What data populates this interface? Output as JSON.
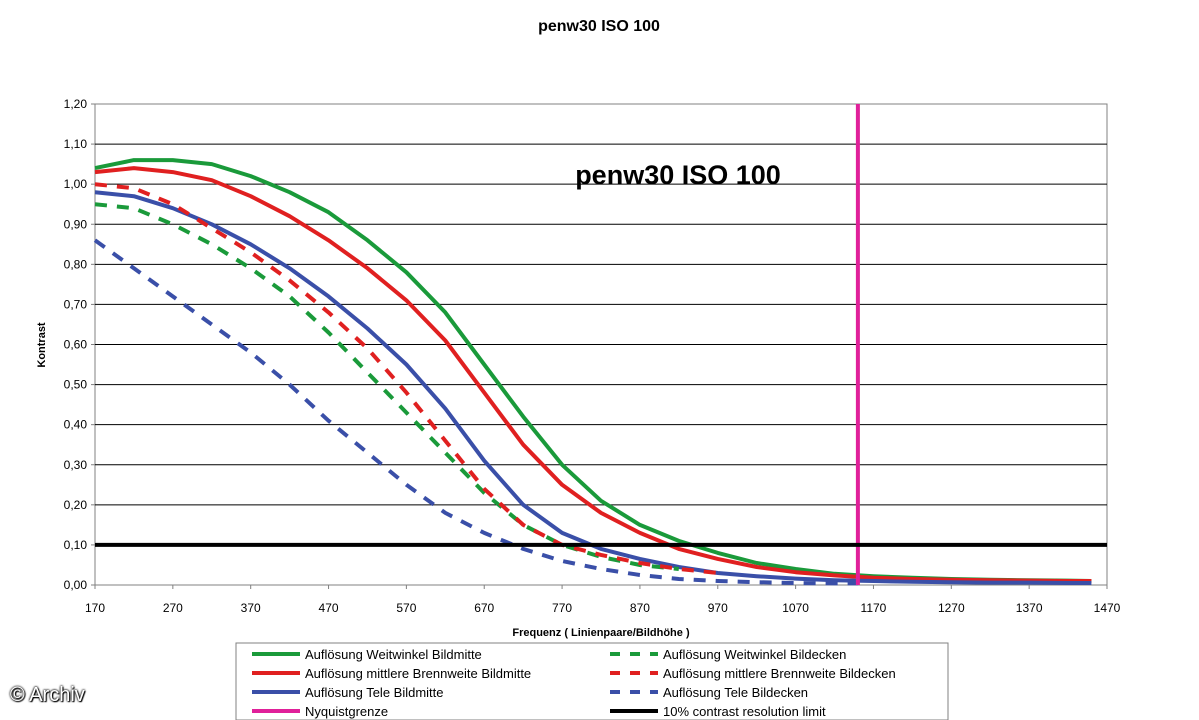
{
  "chart_data": {
    "type": "line",
    "title": "penw30 ISO 100",
    "annotation": "penw30 ISO 100",
    "xlabel": "Frequenz ( Linienpaare/Bildhöhe )",
    "ylabel": "Kontrast",
    "xlim": [
      170,
      1470
    ],
    "ylim": [
      0,
      1.2
    ],
    "x_ticks": [
      "170",
      "270",
      "370",
      "470",
      "570",
      "670",
      "770",
      "870",
      "970",
      "1070",
      "1170",
      "1270",
      "1370",
      "1470"
    ],
    "y_ticks": [
      "0,00",
      "0,10",
      "0,20",
      "0,30",
      "0,40",
      "0,50",
      "0,60",
      "0,70",
      "0,80",
      "0,90",
      "1,00",
      "1,10",
      "1,20"
    ],
    "grid": "horizontal",
    "legend_position": "bottom",
    "series": [
      {
        "name": "Auflösung Weitwinkel Bildmitte",
        "color": "#1a9a3a",
        "style": "solid",
        "x": [
          170,
          220,
          270,
          320,
          370,
          420,
          470,
          520,
          570,
          620,
          670,
          720,
          770,
          820,
          870,
          920,
          970,
          1020,
          1070,
          1120,
          1170,
          1220,
          1270,
          1320,
          1370,
          1420,
          1450
        ],
        "y": [
          1.04,
          1.06,
          1.06,
          1.05,
          1.02,
          0.98,
          0.93,
          0.86,
          0.78,
          0.68,
          0.55,
          0.42,
          0.3,
          0.21,
          0.15,
          0.11,
          0.08,
          0.055,
          0.04,
          0.028,
          0.022,
          0.018,
          0.015,
          0.013,
          0.012,
          0.011,
          0.01
        ]
      },
      {
        "name": "Auflösung mittlere Brennweite Bildmitte",
        "color": "#e02020",
        "style": "solid",
        "x": [
          170,
          220,
          270,
          320,
          370,
          420,
          470,
          520,
          570,
          620,
          670,
          720,
          770,
          820,
          870,
          920,
          970,
          1020,
          1070,
          1120,
          1170,
          1220,
          1270,
          1320,
          1370,
          1420,
          1450
        ],
        "y": [
          1.03,
          1.04,
          1.03,
          1.01,
          0.97,
          0.92,
          0.86,
          0.79,
          0.71,
          0.61,
          0.48,
          0.35,
          0.25,
          0.18,
          0.13,
          0.09,
          0.065,
          0.045,
          0.032,
          0.024,
          0.018,
          0.015,
          0.013,
          0.012,
          0.011,
          0.01,
          0.01
        ]
      },
      {
        "name": "Auflösung Tele Bildmitte",
        "color": "#3a4fa8",
        "style": "solid",
        "x": [
          170,
          220,
          270,
          320,
          370,
          420,
          470,
          520,
          570,
          620,
          670,
          720,
          770,
          820,
          870,
          920,
          970,
          1020,
          1070,
          1120,
          1170,
          1220,
          1270,
          1320,
          1370,
          1420,
          1450
        ],
        "y": [
          0.98,
          0.97,
          0.94,
          0.9,
          0.85,
          0.79,
          0.72,
          0.64,
          0.55,
          0.44,
          0.31,
          0.2,
          0.13,
          0.09,
          0.065,
          0.045,
          0.03,
          0.022,
          0.016,
          0.012,
          0.01,
          0.008,
          0.007,
          0.006,
          0.006,
          0.005,
          0.005
        ]
      },
      {
        "name": "Auflösung Weitwinkel Bildecken",
        "color": "#1a9a3a",
        "style": "dashed",
        "x": [
          170,
          220,
          270,
          320,
          370,
          420,
          470,
          520,
          570,
          620,
          670,
          720,
          770,
          820,
          870,
          920
        ],
        "y": [
          0.95,
          0.94,
          0.9,
          0.85,
          0.79,
          0.72,
          0.63,
          0.53,
          0.43,
          0.33,
          0.23,
          0.15,
          0.1,
          0.07,
          0.05,
          0.04
        ]
      },
      {
        "name": "Auflösung mittlere Brennweite Bildecken",
        "color": "#e02020",
        "style": "dashed",
        "x": [
          170,
          220,
          270,
          320,
          370,
          420,
          470,
          520,
          570,
          620,
          670,
          720,
          770,
          820,
          870,
          920,
          970
        ],
        "y": [
          1.0,
          0.99,
          0.95,
          0.89,
          0.83,
          0.76,
          0.68,
          0.59,
          0.48,
          0.36,
          0.24,
          0.15,
          0.1,
          0.075,
          0.055,
          0.04,
          0.03
        ]
      },
      {
        "name": "Auflösung Tele Bildecken",
        "color": "#3a4fa8",
        "style": "dashed",
        "x": [
          170,
          220,
          270,
          320,
          370,
          420,
          470,
          520,
          570,
          620,
          670,
          720,
          770,
          820,
          870,
          920,
          970,
          1020,
          1070,
          1120,
          1150
        ],
        "y": [
          0.86,
          0.79,
          0.72,
          0.65,
          0.58,
          0.5,
          0.41,
          0.33,
          0.25,
          0.18,
          0.13,
          0.09,
          0.06,
          0.04,
          0.025,
          0.015,
          0.01,
          0.007,
          0.005,
          0.004,
          0.004
        ]
      },
      {
        "name": "Nyquistgrenze",
        "color": "#e0209a",
        "style": "vertical",
        "x_value": 1150
      },
      {
        "name": "10% contrast resolution limit",
        "color": "#000000",
        "style": "horizontal",
        "y_value": 0.1
      }
    ]
  },
  "credit": "© Archiv"
}
